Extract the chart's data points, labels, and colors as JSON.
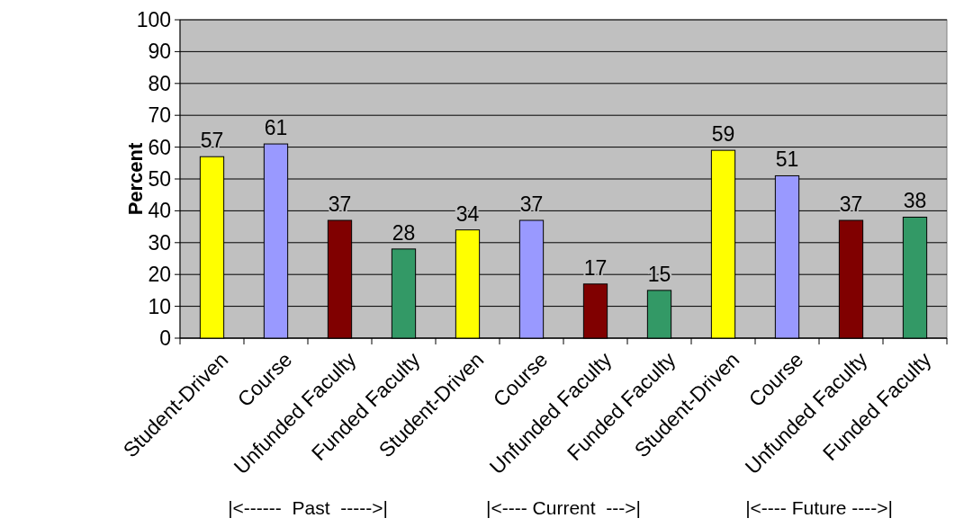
{
  "chart_data": {
    "type": "bar",
    "ylabel": "Percent",
    "categories": [
      "Student-Driven",
      "Course",
      "Unfunded Faculty",
      "Funded Faculty",
      "Student-Driven",
      "Course",
      "Unfunded Faculty",
      "Funded Faculty",
      "Student-Driven",
      "Course",
      "Unfunded Faculty",
      "Funded Faculty"
    ],
    "values": [
      57,
      61,
      37,
      28,
      34,
      37,
      17,
      15,
      59,
      51,
      37,
      38
    ],
    "colors": [
      "#ffff00",
      "#9999ff",
      "#800000",
      "#339966",
      "#ffff00",
      "#9999ff",
      "#800000",
      "#339966",
      "#ffff00",
      "#9999ff",
      "#800000",
      "#339966"
    ],
    "ylim": [
      0,
      100
    ],
    "yticks": [
      0,
      10,
      20,
      30,
      40,
      50,
      60,
      70,
      80,
      90,
      100
    ],
    "grid": "y",
    "data_labels": true,
    "annotations": [
      "|<------  Past  ----->|",
      "|<---- Current  --->|",
      "|<---- Future ---->|"
    ]
  }
}
